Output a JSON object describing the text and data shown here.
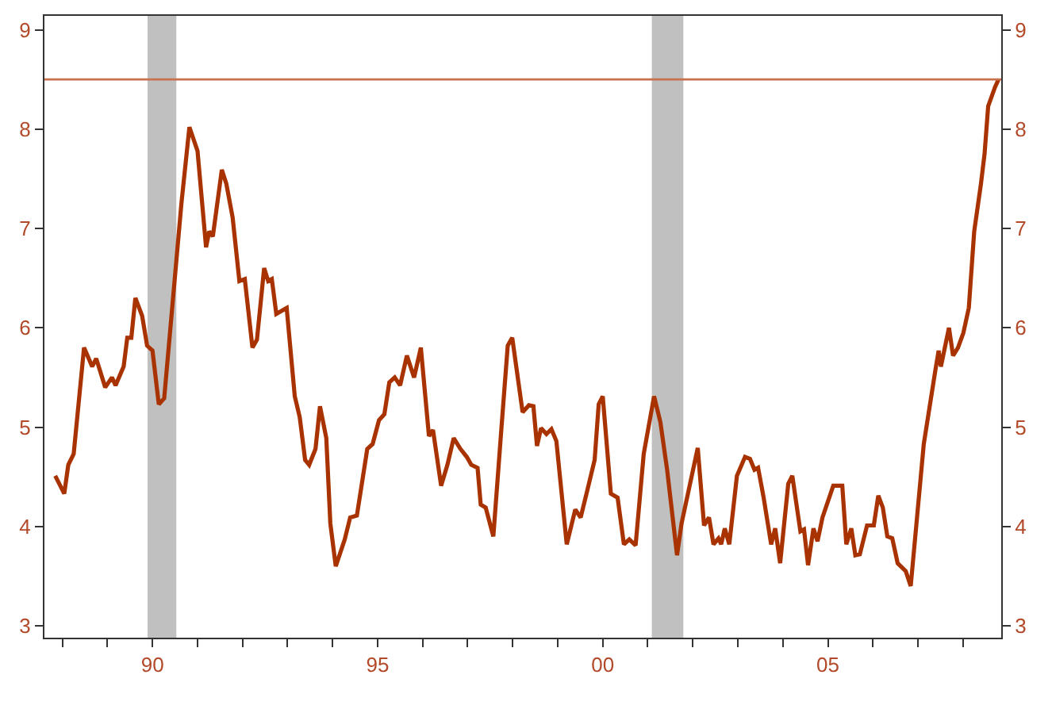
{
  "chart_data": {
    "type": "line",
    "x": [
      1987.84,
      1988.04,
      1988.13,
      1988.25,
      1988.48,
      1988.66,
      1988.75,
      1988.95,
      1989.1,
      1989.18,
      1989.36,
      1989.44,
      1989.53,
      1989.62,
      1989.77,
      1989.88,
      1990.0,
      1990.14,
      1990.26,
      1990.64,
      1990.82,
      1991.0,
      1991.19,
      1991.26,
      1991.34,
      1991.54,
      1991.64,
      1991.78,
      1991.93,
      1992.05,
      1992.22,
      1992.32,
      1992.48,
      1992.57,
      1992.65,
      1992.75,
      1992.98,
      1993.16,
      1993.27,
      1993.39,
      1993.48,
      1993.62,
      1993.72,
      1993.86,
      1993.95,
      1994.07,
      1994.27,
      1994.39,
      1994.54,
      1994.77,
      1994.89,
      1995.03,
      1995.15,
      1995.26,
      1995.38,
      1995.5,
      1995.65,
      1995.81,
      1995.96,
      1996.14,
      1996.23,
      1996.41,
      1996.55,
      1996.69,
      1996.84,
      1996.98,
      1997.08,
      1997.22,
      1997.29,
      1997.4,
      1997.57,
      1997.75,
      1997.89,
      1997.99,
      1998.22,
      1998.36,
      1998.46,
      1998.54,
      1998.63,
      1998.75,
      1998.86,
      1998.97,
      1999.2,
      1999.39,
      1999.51,
      1999.65,
      1999.82,
      1999.91,
      2000.0,
      2000.18,
      2000.33,
      2000.47,
      2000.59,
      2000.73,
      2000.91,
      2001.14,
      2001.28,
      2001.43,
      2001.65,
      2001.75,
      2002.11,
      2002.25,
      2002.36,
      2002.46,
      2002.57,
      2002.63,
      2002.71,
      2002.81,
      2002.98,
      2003.16,
      2003.27,
      2003.37,
      2003.45,
      2003.57,
      2003.74,
      2003.83,
      2003.94,
      2004.12,
      2004.21,
      2004.39,
      2004.47,
      2004.56,
      2004.68,
      2004.77,
      2004.88,
      2005.12,
      2005.32,
      2005.41,
      2005.52,
      2005.61,
      2005.71,
      2005.87,
      2006.02,
      2006.12,
      2006.22,
      2006.32,
      2006.43,
      2006.55,
      2006.73,
      2006.84,
      2007.13,
      2007.39,
      2007.46,
      2007.51,
      2007.69,
      2007.78,
      2007.89,
      2008.01,
      2008.13,
      2008.25,
      2008.4,
      2008.48,
      2008.56,
      2008.71,
      2008.79
    ],
    "series": [
      {
        "color": "#a93300",
        "axis": "y2",
        "values": [
          4.51,
          4.33,
          4.62,
          4.73,
          5.8,
          5.61,
          5.69,
          5.4,
          5.5,
          5.42,
          5.61,
          5.9,
          5.9,
          6.3,
          6.12,
          5.82,
          5.77,
          5.23,
          5.29,
          7.24,
          8.02,
          7.78,
          6.81,
          6.97,
          6.92,
          7.59,
          7.45,
          7.11,
          6.47,
          6.49,
          5.8,
          5.88,
          6.6,
          6.47,
          6.49,
          6.14,
          6.2,
          5.31,
          5.1,
          4.67,
          4.62,
          4.78,
          5.21,
          4.89,
          4.03,
          3.6,
          3.87,
          4.09,
          4.11,
          4.78,
          4.83,
          5.07,
          5.13,
          5.45,
          5.5,
          5.42,
          5.72,
          5.5,
          5.8,
          4.91,
          4.97,
          4.41,
          4.62,
          4.89,
          4.78,
          4.7,
          4.62,
          4.59,
          4.22,
          4.19,
          3.9,
          4.99,
          5.82,
          5.9,
          5.15,
          5.22,
          5.21,
          4.81,
          4.99,
          4.93,
          4.98,
          4.86,
          3.82,
          4.17,
          4.09,
          4.35,
          4.67,
          5.23,
          5.31,
          4.33,
          4.29,
          3.82,
          3.87,
          3.81,
          4.73,
          5.31,
          5.05,
          4.57,
          3.71,
          4.03,
          4.79,
          4.01,
          4.09,
          3.82,
          3.88,
          3.82,
          3.98,
          3.82,
          4.51,
          4.7,
          4.68,
          4.57,
          4.59,
          4.3,
          3.82,
          3.98,
          3.63,
          4.43,
          4.51,
          3.95,
          3.97,
          3.61,
          3.98,
          3.85,
          4.09,
          4.41,
          4.41,
          3.82,
          3.98,
          3.71,
          3.72,
          4.01,
          4.01,
          4.31,
          4.19,
          3.9,
          3.88,
          3.63,
          3.55,
          3.4,
          4.83,
          5.58,
          5.77,
          5.61,
          6.0,
          5.72,
          5.8,
          5.95,
          6.2,
          6.97,
          7.45,
          7.75,
          8.23,
          8.42,
          8.5
        ]
      }
    ],
    "xlim": [
      1987.6,
      2008.85
    ],
    "xticks": [
      {
        "value": 1988,
        "label": null
      },
      {
        "value": 1989,
        "label": null
      },
      {
        "value": 1990,
        "label": "90"
      },
      {
        "value": 1991,
        "label": null
      },
      {
        "value": 1992,
        "label": null
      },
      {
        "value": 1993,
        "label": null
      },
      {
        "value": 1994,
        "label": null
      },
      {
        "value": 1995,
        "label": "95"
      },
      {
        "value": 1996,
        "label": null
      },
      {
        "value": 1997,
        "label": null
      },
      {
        "value": 1998,
        "label": null
      },
      {
        "value": 1999,
        "label": null
      },
      {
        "value": 2000,
        "label": "00"
      },
      {
        "value": 2001,
        "label": null
      },
      {
        "value": 2002,
        "label": null
      },
      {
        "value": 2003,
        "label": null
      },
      {
        "value": 2004,
        "label": null
      },
      {
        "value": 2005,
        "label": "05"
      },
      {
        "value": 2006,
        "label": null
      },
      {
        "value": 2007,
        "label": null
      },
      {
        "value": 2008,
        "label": null
      }
    ],
    "ylim": [
      2.88,
      9.14
    ],
    "yticks": [
      3,
      4,
      5,
      6,
      7,
      8,
      9
    ],
    "y2lim": [
      2.88,
      9.14
    ],
    "y2ticks": [
      3,
      4,
      5,
      6,
      7,
      8,
      9
    ],
    "ref_lines": [
      {
        "axis": "y",
        "value": 8.5,
        "color": "#c8704f"
      }
    ],
    "bands": [
      {
        "axis": "x",
        "from": 1989.89,
        "to": 1990.53,
        "color": "#c0c0c0"
      },
      {
        "axis": "x",
        "from": 2001.09,
        "to": 2001.79,
        "color": "#c0c0c0"
      }
    ],
    "grid": false,
    "legend": false,
    "marker": "none",
    "line_style": "solid"
  }
}
